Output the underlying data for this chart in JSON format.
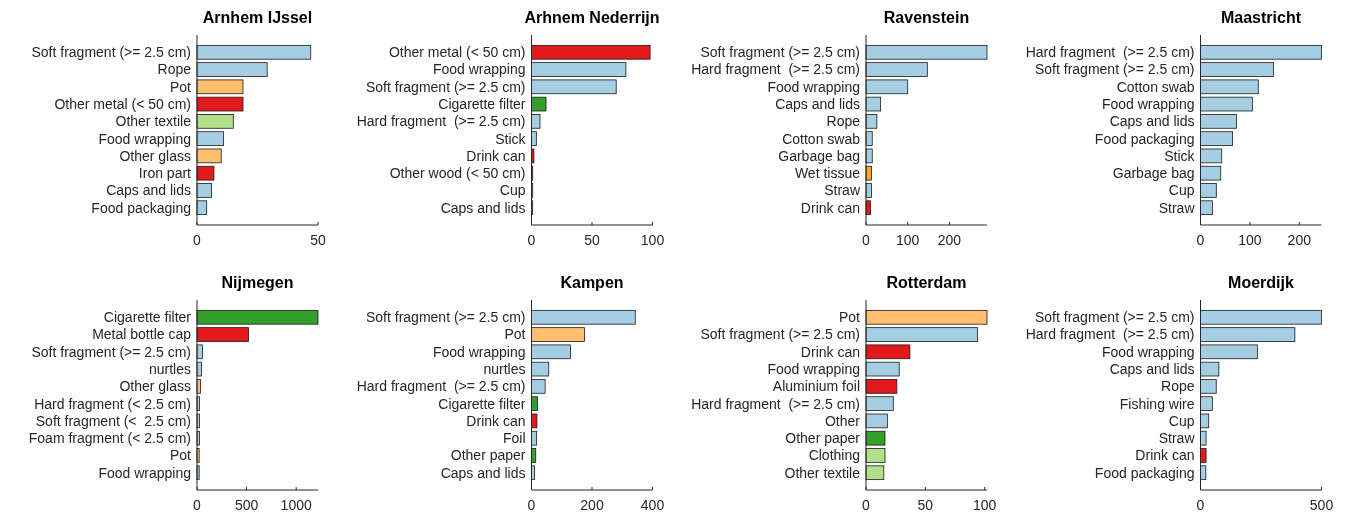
{
  "chart_data": [
    {
      "type": "bar",
      "orientation": "horizontal",
      "title": "Arnhem IJssel",
      "categories": [
        "Soft fragment (>= 2.5 cm)",
        "Rope",
        "Pot",
        "Other metal (< 50 cm)",
        "Other textile",
        "Food wrapping",
        "Other glass",
        "Iron part",
        "Caps and lids",
        "Food packaging"
      ],
      "values": [
        47,
        29,
        19,
        19,
        15,
        11,
        10,
        7,
        6,
        4
      ],
      "colors": [
        "#a6cee3",
        "#a6cee3",
        "#fdbf6f",
        "#e31a1c",
        "#b2df8a",
        "#a6cee3",
        "#fdbf6f",
        "#e31a1c",
        "#a6cee3",
        "#a6cee3"
      ],
      "xlim": [
        0,
        50
      ],
      "xticks": [
        0,
        50
      ],
      "grid": false
    },
    {
      "type": "bar",
      "orientation": "horizontal",
      "title": "Arhnem Nederrijn",
      "categories": [
        "Other metal (< 50 cm)",
        "Food wrapping",
        "Soft fragment (>= 2.5 cm)",
        "Cigarette filter",
        "Hard fragment  (>= 2.5 cm)",
        "Stick",
        "Drink can",
        "Other wood (< 50 cm)",
        "Cup",
        "Caps and lids"
      ],
      "values": [
        98,
        78,
        70,
        12,
        7,
        4,
        2,
        1,
        1,
        1
      ],
      "colors": [
        "#e31a1c",
        "#a6cee3",
        "#a6cee3",
        "#33a02c",
        "#a6cee3",
        "#a6cee3",
        "#e31a1c",
        "#c8593a",
        "#a6cee3",
        "#a6cee3"
      ],
      "xlim": [
        0,
        100
      ],
      "xticks": [
        0,
        50,
        100
      ],
      "grid": false
    },
    {
      "type": "bar",
      "orientation": "horizontal",
      "title": "Ravenstein",
      "categories": [
        "Soft fragment (>= 2.5 cm)",
        "Hard fragment  (>= 2.5 cm)",
        "Food wrapping",
        "Caps and lids",
        "Rope",
        "Cotton swab",
        "Garbage bag",
        "Wet tissue",
        "Straw",
        "Drink can"
      ],
      "values": [
        290,
        147,
        100,
        35,
        26,
        15,
        15,
        13,
        13,
        11
      ],
      "colors": [
        "#a6cee3",
        "#a6cee3",
        "#a6cee3",
        "#a6cee3",
        "#a6cee3",
        "#a6cee3",
        "#a6cee3",
        "#f7a91f",
        "#a6cee3",
        "#e31a1c"
      ],
      "xlim": [
        0,
        290
      ],
      "xticks": [
        0,
        100,
        200
      ],
      "grid": false
    },
    {
      "type": "bar",
      "orientation": "horizontal",
      "title": "Maastricht",
      "categories": [
        "Hard fragment  (>= 2.5 cm)",
        "Soft fragment (>= 2.5 cm)",
        "Cotton swab",
        "Food wrapping",
        "Caps and lids",
        "Food packaging",
        "Stick",
        "Garbage bag",
        "Cup",
        "Straw"
      ],
      "values": [
        245,
        148,
        117,
        105,
        73,
        65,
        43,
        41,
        32,
        24
      ],
      "colors": [
        "#a6cee3",
        "#a6cee3",
        "#a6cee3",
        "#a6cee3",
        "#a6cee3",
        "#a6cee3",
        "#a6cee3",
        "#a6cee3",
        "#a6cee3",
        "#a6cee3"
      ],
      "xlim": [
        0,
        245
      ],
      "xticks": [
        0,
        100,
        200
      ],
      "grid": false
    },
    {
      "type": "bar",
      "orientation": "horizontal",
      "title": "Nijmegen",
      "categories": [
        "Cigarette filter",
        "Metal bottle cap",
        "Soft fragment (>= 2.5 cm)",
        "nurtles",
        "Other glass",
        "Hard fragment (< 2.5 cm)",
        "Soft fragment (<  2.5 cm)",
        "Foam fragment (< 2.5 cm)",
        "Pot",
        "Food wrapping"
      ],
      "values": [
        1220,
        520,
        55,
        45,
        35,
        25,
        25,
        25,
        22,
        22
      ],
      "colors": [
        "#33a02c",
        "#e31a1c",
        "#a6cee3",
        "#a6cee3",
        "#fdbf6f",
        "#a6cee3",
        "#a6cee3",
        "#a6cee3",
        "#fdbf6f",
        "#a6cee3"
      ],
      "xlim": [
        0,
        1220
      ],
      "xticks": [
        0,
        500,
        1000
      ],
      "grid": false
    },
    {
      "type": "bar",
      "orientation": "horizontal",
      "title": "Kampen",
      "categories": [
        "Soft fragment (>= 2.5 cm)",
        "Pot",
        "Food wrapping",
        "nurtles",
        "Hard fragment  (>= 2.5 cm)",
        "Cigarette filter",
        "Drink can",
        "Foil",
        "Other paper",
        "Caps and lids"
      ],
      "values": [
        343,
        175,
        129,
        57,
        45,
        20,
        18,
        17,
        14,
        10
      ],
      "colors": [
        "#a6cee3",
        "#fdbf6f",
        "#a6cee3",
        "#a6cee3",
        "#a6cee3",
        "#33a02c",
        "#e31a1c",
        "#a6cee3",
        "#33a02c",
        "#a6cee3"
      ],
      "xlim": [
        0,
        400
      ],
      "xticks": [
        0,
        200,
        400
      ],
      "grid": false
    },
    {
      "type": "bar",
      "orientation": "horizontal",
      "title": "Rotterdam",
      "categories": [
        "Pot",
        "Soft fragment (>= 2.5 cm)",
        "Drink can",
        "Food wrapping",
        "Aluminium foil",
        "Hard fragment  (>= 2.5 cm)",
        "Other",
        "Other paper",
        "Clothing",
        "Other textile"
      ],
      "values": [
        102,
        94,
        37,
        28,
        26,
        23,
        18,
        16,
        16,
        15
      ],
      "colors": [
        "#fdbf6f",
        "#a6cee3",
        "#e31a1c",
        "#a6cee3",
        "#e31a1c",
        "#a6cee3",
        "#a6cee3",
        "#33a02c",
        "#b2df8a",
        "#b2df8a"
      ],
      "xlim": [
        0,
        102
      ],
      "xticks": [
        0,
        50,
        100
      ],
      "grid": false
    },
    {
      "type": "bar",
      "orientation": "horizontal",
      "title": "Moerdijk",
      "categories": [
        "Soft fragment (>= 2.5 cm)",
        "Hard fragment  (>= 2.5 cm)",
        "Food wrapping",
        "Caps and lids",
        "Rope",
        "Fishing wire",
        "Cup",
        "Straw",
        "Drink can",
        "Food packaging"
      ],
      "values": [
        500,
        390,
        235,
        76,
        65,
        49,
        34,
        23,
        23,
        22
      ],
      "colors": [
        "#a6cee3",
        "#a6cee3",
        "#a6cee3",
        "#a6cee3",
        "#a6cee3",
        "#a6cee3",
        "#a6cee3",
        "#a6cee3",
        "#e31a1c",
        "#a6cee3"
      ],
      "xlim": [
        0,
        500
      ],
      "xticks": [
        0,
        500
      ],
      "grid": false
    }
  ]
}
